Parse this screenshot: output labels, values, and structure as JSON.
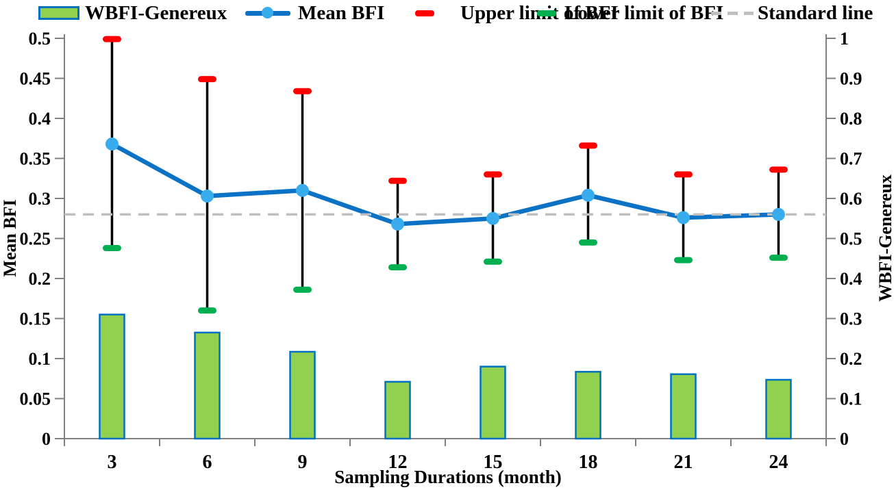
{
  "legend": {
    "items": [
      {
        "label": "WBFI-Genereux",
        "icon": "bar-swatch-icon"
      },
      {
        "label": "Mean BFI",
        "icon": "line-marker-icon"
      },
      {
        "label": "Upper limit of BFI",
        "icon": "red-dash-icon"
      },
      {
        "label": "Lower limit of BFI",
        "icon": "green-dash-icon"
      },
      {
        "label": "Standard line",
        "icon": "gray-dashed-line-icon"
      }
    ]
  },
  "chart_data": {
    "type": "combo-bar-line-errorbar",
    "categories": [
      "3",
      "6",
      "9",
      "12",
      "15",
      "18",
      "21",
      "24"
    ],
    "xlabel": "Sampling Durations (month)",
    "left_axis": {
      "label": "Mean BFI",
      "min": 0,
      "max": 0.5,
      "ticks": [
        "0",
        "0.05",
        "0.1",
        "0.15",
        "0.2",
        "0.25",
        "0.3",
        "0.35",
        "0.4",
        "0.45",
        "0.5"
      ]
    },
    "right_axis": {
      "label": "WBFI-Genereux",
      "min": 0,
      "max": 1,
      "ticks": [
        "0",
        "0.1",
        "0.2",
        "0.3",
        "0.4",
        "0.5",
        "0.6",
        "0.7",
        "0.8",
        "0.9",
        "1"
      ]
    },
    "series": [
      {
        "name": "WBFI-Genereux",
        "type": "bar",
        "axis": "right",
        "values": [
          0.31,
          0.265,
          0.217,
          0.142,
          0.18,
          0.167,
          0.161,
          0.147
        ]
      },
      {
        "name": "Mean BFI",
        "type": "line",
        "axis": "left",
        "values": [
          0.368,
          0.303,
          0.31,
          0.268,
          0.275,
          0.304,
          0.276,
          0.28
        ]
      },
      {
        "name": "Upper limit of BFI",
        "type": "errorbar-upper",
        "axis": "left",
        "values": [
          0.499,
          0.449,
          0.434,
          0.322,
          0.33,
          0.366,
          0.33,
          0.336
        ]
      },
      {
        "name": "Lower limit of BFI",
        "type": "errorbar-lower",
        "axis": "left",
        "values": [
          0.238,
          0.16,
          0.186,
          0.214,
          0.221,
          0.245,
          0.223,
          0.226
        ]
      }
    ],
    "standard_line": {
      "value": 0.28,
      "axis": "left"
    },
    "grid": false,
    "legend_position": "top",
    "colors": {
      "bar_fill": "#92D050",
      "bar_border": "#0070C0",
      "mean_line": "#0C72C6",
      "marker": "#38ACEC",
      "upper_cap": "#FF0000",
      "lower_cap": "#00B050",
      "standard": "#BFBFBF",
      "error_bar": "#000000",
      "axis": "#808080",
      "text": "#000000"
    }
  }
}
